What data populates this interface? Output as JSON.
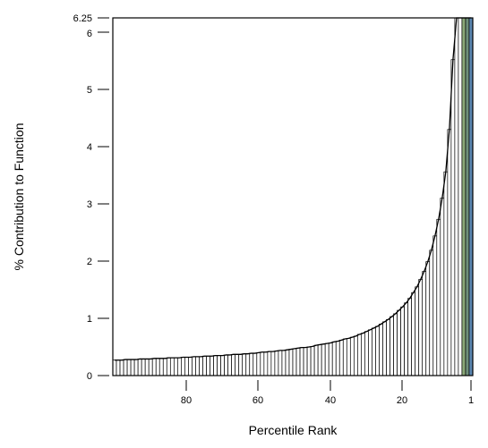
{
  "chart_data": {
    "type": "bar",
    "title": "",
    "xlabel": "Percentile Rank",
    "ylabel": "% Contribution to Function",
    "x_ticks": [
      80,
      60,
      40,
      20,
      1
    ],
    "y_ticks": [
      0,
      1,
      2,
      3,
      4,
      5,
      6,
      6.25
    ],
    "ylim": [
      0,
      6.25
    ],
    "xlim": [
      100,
      1
    ],
    "x_direction": "descending",
    "grid": false,
    "legend": "none",
    "x": [
      100,
      99,
      98,
      97,
      96,
      95,
      94,
      93,
      92,
      91,
      90,
      89,
      88,
      87,
      86,
      85,
      84,
      83,
      82,
      81,
      80,
      79,
      78,
      77,
      76,
      75,
      74,
      73,
      72,
      71,
      70,
      69,
      68,
      67,
      66,
      65,
      64,
      63,
      62,
      61,
      60,
      59,
      58,
      57,
      56,
      55,
      54,
      53,
      52,
      51,
      50,
      49,
      48,
      47,
      46,
      45,
      44,
      43,
      42,
      41,
      40,
      39,
      38,
      37,
      36,
      35,
      34,
      33,
      32,
      31,
      30,
      29,
      28,
      27,
      26,
      25,
      24,
      23,
      22,
      21,
      20,
      19,
      18,
      17,
      16,
      15,
      14,
      13,
      12,
      11,
      10,
      9,
      8,
      7,
      6,
      5,
      4,
      3,
      2,
      1
    ],
    "values": [
      0.27,
      0.27,
      0.27,
      0.28,
      0.28,
      0.28,
      0.28,
      0.29,
      0.29,
      0.29,
      0.29,
      0.3,
      0.3,
      0.3,
      0.3,
      0.31,
      0.31,
      0.31,
      0.31,
      0.32,
      0.32,
      0.32,
      0.33,
      0.33,
      0.33,
      0.34,
      0.34,
      0.34,
      0.35,
      0.35,
      0.35,
      0.36,
      0.36,
      0.37,
      0.37,
      0.37,
      0.38,
      0.38,
      0.39,
      0.39,
      0.4,
      0.41,
      0.41,
      0.42,
      0.42,
      0.43,
      0.44,
      0.44,
      0.45,
      0.46,
      0.47,
      0.48,
      0.49,
      0.49,
      0.5,
      0.51,
      0.53,
      0.54,
      0.55,
      0.56,
      0.57,
      0.59,
      0.6,
      0.62,
      0.64,
      0.65,
      0.67,
      0.69,
      0.72,
      0.74,
      0.77,
      0.8,
      0.83,
      0.86,
      0.9,
      0.94,
      0.98,
      1.03,
      1.08,
      1.14,
      1.2,
      1.27,
      1.35,
      1.45,
      1.55,
      1.68,
      1.82,
      1.99,
      2.19,
      2.44,
      2.73,
      3.1,
      3.56,
      4.3,
      5.52,
      6.25,
      6.25,
      6.25,
      6.25,
      6.25
    ],
    "highlight": {
      "x": [
        3,
        2,
        1
      ],
      "colors": [
        "#8aa878",
        "#6f8f7a",
        "#5b86b0"
      ]
    },
    "colors": {
      "bar_fill": "#ffffff",
      "bar_stroke": "#000000",
      "curve": "#000000"
    }
  }
}
